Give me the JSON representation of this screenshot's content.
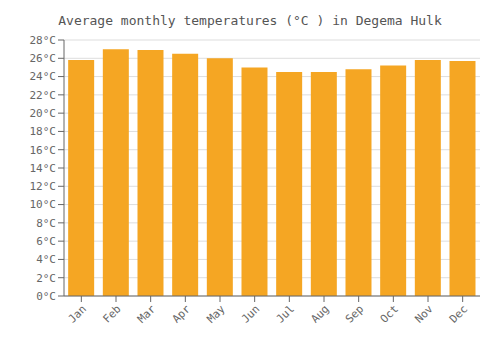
{
  "chart_data": {
    "type": "bar",
    "title": "Average monthly temperatures (°C ) in Degema Hulk",
    "categories": [
      "Jan",
      "Feb",
      "Mar",
      "Apr",
      "May",
      "Jun",
      "Jul",
      "Aug",
      "Sep",
      "Oct",
      "Nov",
      "Dec"
    ],
    "values": [
      25.8,
      27.0,
      26.9,
      26.5,
      26.0,
      25.0,
      24.5,
      24.5,
      24.8,
      25.2,
      25.8,
      25.7
    ],
    "color": "#F5A623",
    "ylim": [
      0,
      28
    ],
    "yticks": [
      {
        "value": 0,
        "label": "0°C"
      },
      {
        "value": 2,
        "label": "2°C"
      },
      {
        "value": 4,
        "label": "4°C"
      },
      {
        "value": 6,
        "label": "6°C"
      },
      {
        "value": 8,
        "label": "8°C"
      },
      {
        "value": 10,
        "label": "10°C"
      },
      {
        "value": 12,
        "label": "12°C"
      },
      {
        "value": 14,
        "label": "14°C"
      },
      {
        "value": 16,
        "label": "16°C"
      },
      {
        "value": 18,
        "label": "18°C"
      },
      {
        "value": 20,
        "label": "20°C"
      },
      {
        "value": 22,
        "label": "22°C"
      },
      {
        "value": 24,
        "label": "24°C"
      },
      {
        "value": 26,
        "label": "26°C"
      },
      {
        "value": 28,
        "label": "28°C"
      }
    ],
    "grid": true
  }
}
